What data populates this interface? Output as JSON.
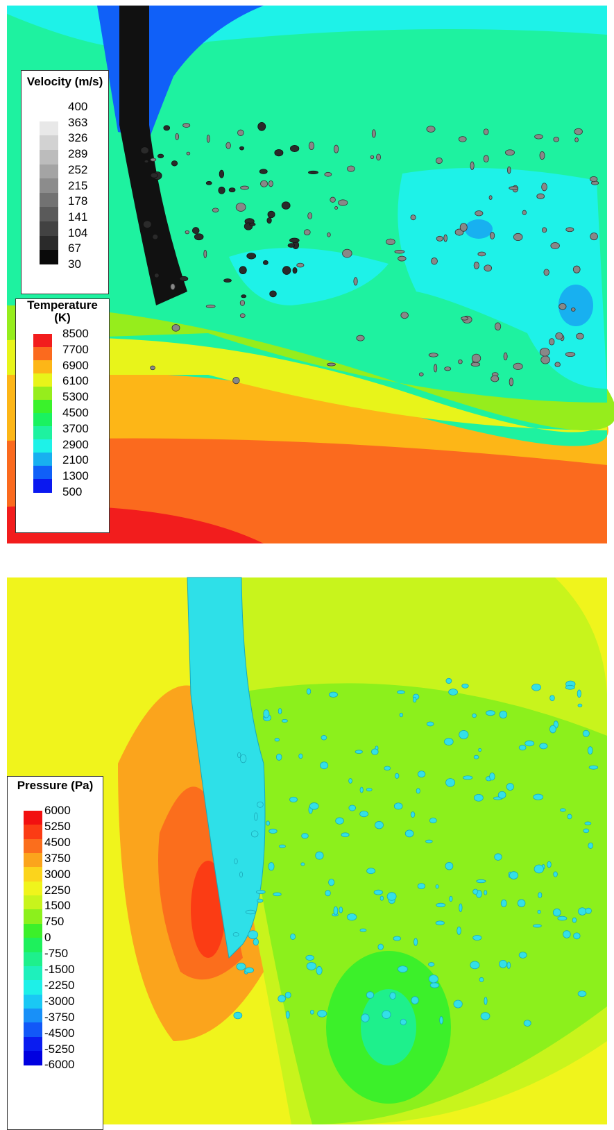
{
  "velocity_legend": {
    "title": "Velocity (m/s)",
    "levels": [
      400,
      363,
      326,
      289,
      252,
      215,
      178,
      141,
      104,
      67,
      30
    ],
    "colors": [
      "#ffffff",
      "#e8e8e8",
      "#d2d2d2",
      "#bcbcbc",
      "#a4a4a4",
      "#8c8c8c",
      "#727272",
      "#5a5a5a",
      "#424242",
      "#2a2a2a",
      "#0a0a0a"
    ]
  },
  "temperature_legend": {
    "title": "Temperature (K)",
    "levels": [
      8500,
      7700,
      6900,
      6100,
      5300,
      4500,
      3700,
      2900,
      2100,
      1300,
      500
    ],
    "colors": [
      "#f21d1d",
      "#fb6a1e",
      "#fdb617",
      "#e8f41a",
      "#96ed1c",
      "#3af22b",
      "#1af260",
      "#1ef2a0",
      "#1ef2e8",
      "#18b0f0",
      "#1060f8",
      "#0a18f0"
    ]
  },
  "pressure_legend": {
    "title": "Pressure (Pa)",
    "levels": [
      6000,
      5250,
      4500,
      3750,
      3000,
      2250,
      1500,
      750,
      0,
      -750,
      -1500,
      -2250,
      -3000,
      -3750,
      -4500,
      -5250,
      -6000
    ],
    "colors": [
      "#f21010",
      "#fb3c14",
      "#fb6e1c",
      "#fba41c",
      "#fbd41c",
      "#f0f41c",
      "#c8f41c",
      "#8cf01c",
      "#3cf02a",
      "#1ef05c",
      "#1ef08c",
      "#1ef0bc",
      "#1ef0e8",
      "#1ac8f4",
      "#1890f8",
      "#1258f8",
      "#0a1cf0",
      "#0000e0"
    ]
  }
}
